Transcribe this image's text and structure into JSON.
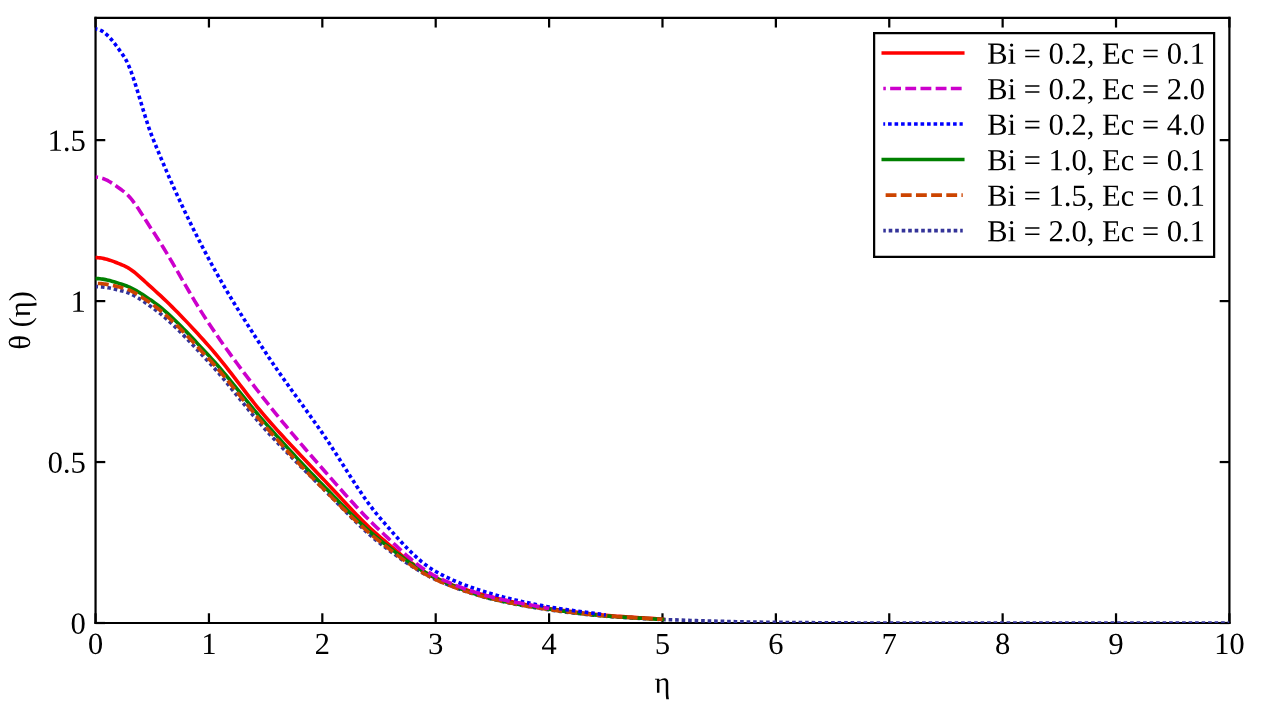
{
  "chart_data": {
    "type": "line",
    "xlabel": "η",
    "ylabel": "θ (η)",
    "xlim": [
      0,
      10
    ],
    "ylim": [
      0,
      1.88
    ],
    "xticks": [
      0,
      1,
      2,
      3,
      4,
      5,
      6,
      7,
      8,
      9,
      10
    ],
    "yticks": [
      0,
      0.5,
      1,
      1.5
    ],
    "x": [
      0,
      0.25,
      0.5,
      1,
      1.5,
      2,
      2.5,
      3,
      3.5,
      4,
      4.5,
      5,
      6,
      7,
      8,
      9,
      10
    ],
    "grid": false,
    "legend": "top right",
    "marker": "none",
    "series": [
      {
        "name": "Bi = 0.2, Ec = 0.1",
        "color": "#ff0000",
        "line_style": "solid",
        "values": [
          1.135,
          1.11,
          1.04,
          0.86,
          0.64,
          0.45,
          0.27,
          0.14,
          0.08,
          0.045,
          0.024,
          0.012,
          null,
          null,
          null,
          null,
          null
        ]
      },
      {
        "name": "Bi = 0.2, Ec = 2.0",
        "color": "#cc00cc",
        "line_style": "dashed",
        "values": [
          1.385,
          1.34,
          1.22,
          0.93,
          0.69,
          0.48,
          0.29,
          0.145,
          0.08,
          0.045,
          null,
          null,
          null,
          null,
          null,
          null,
          null
        ]
      },
      {
        "name": "Bi = 0.2, Ec = 4.0",
        "color": "#0000ff",
        "line_style": "dotted",
        "values": [
          1.845,
          1.76,
          1.51,
          1.13,
          0.84,
          0.59,
          0.33,
          0.16,
          0.09,
          0.05,
          0.025,
          null,
          null,
          null,
          null,
          null,
          null
        ]
      },
      {
        "name": "Bi = 1.0, Ec = 0.1",
        "color": "#008000",
        "line_style": "solid",
        "values": [
          1.07,
          1.05,
          1.0,
          0.83,
          0.62,
          0.43,
          0.26,
          0.14,
          0.075,
          0.043,
          0.022,
          0.011,
          null,
          null,
          null,
          null,
          null
        ]
      },
      {
        "name": "Bi = 1.5, Ec = 0.1",
        "color": "#cc4400",
        "line_style": "dashed",
        "values": [
          1.055,
          1.04,
          0.99,
          0.82,
          0.61,
          0.42,
          0.255,
          0.135,
          0.075,
          0.042,
          0.022,
          0.011,
          null,
          null,
          null,
          null,
          null
        ]
      },
      {
        "name": "Bi = 2.0, Ec = 0.1",
        "color": "#333399",
        "line_style": "dotted",
        "values": [
          1.045,
          1.03,
          0.98,
          0.81,
          0.6,
          0.42,
          0.25,
          0.135,
          0.074,
          0.041,
          0.021,
          0.011,
          0.002,
          0,
          0,
          0,
          0
        ]
      }
    ]
  }
}
